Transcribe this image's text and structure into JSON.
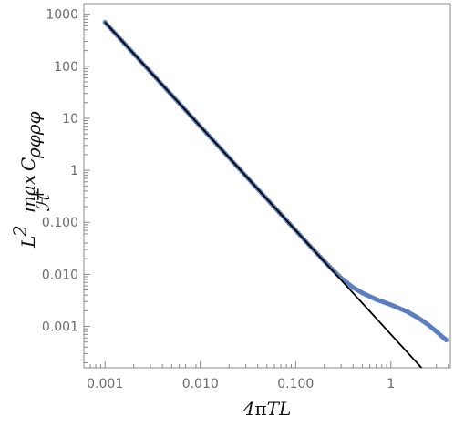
{
  "chart_data": {
    "type": "scatter",
    "xscale": "log",
    "yscale": "log",
    "xlim": [
      0.0006,
      4.2
    ],
    "ylim": [
      0.00016,
      1600
    ],
    "xticks": [
      {
        "value": 0.001,
        "label": "0.001"
      },
      {
        "value": 0.01,
        "label": "0.010"
      },
      {
        "value": 0.1,
        "label": "0.100"
      },
      {
        "value": 1,
        "label": "1"
      }
    ],
    "yticks": [
      {
        "value": 1000,
        "label": "1000"
      },
      {
        "value": 100,
        "label": "100"
      },
      {
        "value": 10,
        "label": "10"
      },
      {
        "value": 1,
        "label": "1"
      },
      {
        "value": 0.1,
        "label": "0.100"
      },
      {
        "value": 0.01,
        "label": "0.010"
      },
      {
        "value": 0.001,
        "label": "0.001"
      }
    ],
    "xlabel": "4πTL",
    "ylabel": "L² max C_ρφρφ over H⁺",
    "grid": false,
    "series": [
      {
        "kind": "points",
        "color": "#5b7fbe",
        "points": [
          [
            0.001,
            700
          ],
          [
            0.0015,
            311
          ],
          [
            0.002,
            175
          ],
          [
            0.003,
            77.8
          ],
          [
            0.005,
            28
          ],
          [
            0.007,
            14.3
          ],
          [
            0.01,
            7.0
          ],
          [
            0.015,
            3.11
          ],
          [
            0.02,
            1.75
          ],
          [
            0.03,
            0.778
          ],
          [
            0.05,
            0.28
          ],
          [
            0.07,
            0.143
          ],
          [
            0.1,
            0.07
          ],
          [
            0.15,
            0.0313
          ],
          [
            0.2,
            0.0178
          ],
          [
            0.25,
            0.0118
          ],
          [
            0.3,
            0.0085
          ],
          [
            0.4,
            0.0056
          ],
          [
            0.5,
            0.0044
          ],
          [
            0.7,
            0.0033
          ],
          [
            1.0,
            0.0026
          ],
          [
            1.5,
            0.0019
          ],
          [
            2.0,
            0.0014
          ],
          [
            2.5,
            0.00105
          ],
          [
            3.0,
            0.0008
          ],
          [
            3.5,
            0.00062
          ],
          [
            3.8,
            0.00055
          ]
        ]
      },
      {
        "kind": "line",
        "color": "#000000",
        "points": [
          [
            0.001,
            700
          ],
          [
            3.8,
            4.85e-05
          ]
        ]
      }
    ]
  }
}
